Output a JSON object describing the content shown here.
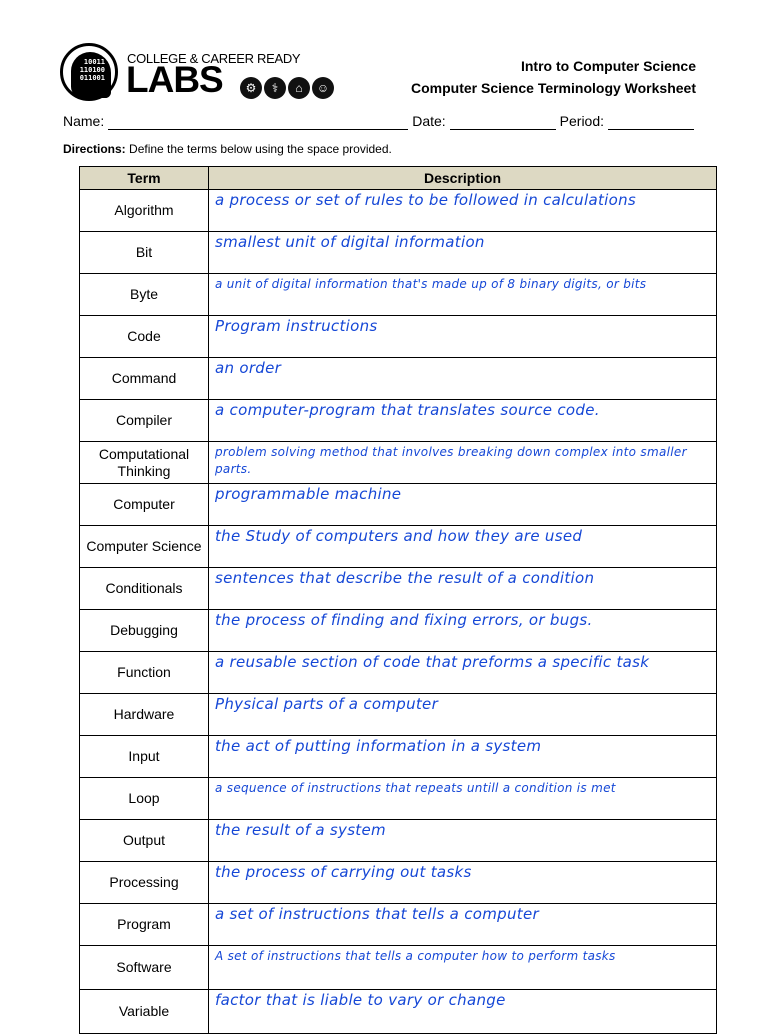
{
  "logo": {
    "binary": [
      "10011",
      "110100",
      "011001"
    ],
    "line1": "COLLEGE & CAREER READY",
    "line2": "LABS",
    "icons": [
      "gears-icon",
      "caduceus-icon",
      "house-icon",
      "people-icon"
    ]
  },
  "header": {
    "course": "Intro to Computer Science",
    "worksheet": "Computer Science Terminology Worksheet"
  },
  "fields": {
    "name_label": "Name:",
    "date_label": "Date:",
    "period_label": "Period:"
  },
  "directions": {
    "label": "Directions:",
    "text": " Define the terms below using the space provided."
  },
  "table": {
    "headers": [
      "Term",
      "Description"
    ],
    "rows": [
      {
        "term": "Algorithm",
        "desc": "a process or set of rules to be followed in calculations"
      },
      {
        "term": "Bit",
        "desc": "smallest unit of digital information"
      },
      {
        "term": "Byte",
        "desc": "a unit of digital information that's made up of 8 binary digits, or bits"
      },
      {
        "term": "Code",
        "desc": "Program instructions"
      },
      {
        "term": "Command",
        "desc": "an order"
      },
      {
        "term": "Compiler",
        "desc": "a computer-program that translates source code."
      },
      {
        "term": "Computational Thinking",
        "desc": "problem solving method that involves breaking down complex into smaller parts."
      },
      {
        "term": "Computer",
        "desc": "programmable machine"
      },
      {
        "term": "Computer Science",
        "desc": "the Study of computers and how they are used"
      },
      {
        "term": "Conditionals",
        "desc": "sentences that describe the result of a condition"
      },
      {
        "term": "Debugging",
        "desc": "the process of finding and fixing errors, or bugs."
      },
      {
        "term": "Function",
        "desc": "a reusable section of code that preforms a specific task"
      },
      {
        "term": "Hardware",
        "desc": "Physical parts of a computer"
      },
      {
        "term": "Input",
        "desc": "the act of putting information in a system"
      },
      {
        "term": "Loop",
        "desc": "a sequence of instructions that repeats untill a condition is met"
      },
      {
        "term": "Output",
        "desc": "the result of a system"
      },
      {
        "term": "Processing",
        "desc": "the process of carrying out tasks"
      },
      {
        "term": "Program",
        "desc": "a set of instructions that tells a computer"
      },
      {
        "term": "Software",
        "desc": "A set of instructions that tells a computer how to perform tasks"
      },
      {
        "term": "Variable",
        "desc": "factor that is liable to vary or change"
      }
    ]
  },
  "colors": {
    "ink": "#1547d6",
    "header_fill": "#ddd9c3"
  }
}
